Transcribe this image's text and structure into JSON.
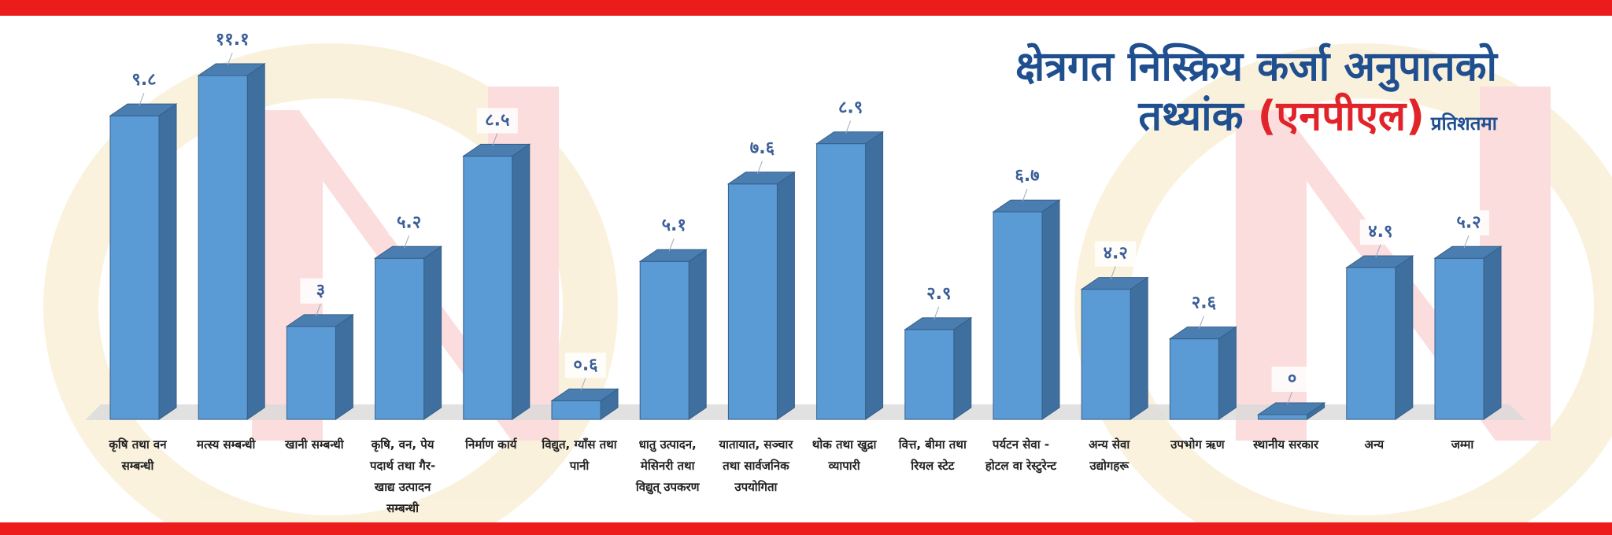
{
  "title": {
    "line1": "क्षेत्रगत निस्क्रिय कर्जा अनुपातको",
    "line2_prefix": "तथ्यांक",
    "line2_highlight": "(एनपीएल)",
    "unit": "प्रतिशतमा"
  },
  "colors": {
    "band": "#ed1c1c",
    "title": "#1f4f8f",
    "highlight": "#e0242a",
    "bar_front": "#5b9bd5",
    "bar_top": "#4a7eb0",
    "bar_side": "#3f6f9e",
    "label_text": "#3a5f99"
  },
  "chart_data": {
    "type": "bar",
    "title": "क्षेत्रगत निस्क्रिय कर्जा अनुपातको तथ्यांक (एनपीएल) प्रतिशतमा",
    "categories": [
      "कृषि तथा वन सम्बन्धी",
      "मत्स्य सम्बन्धी",
      "खानी सम्बन्धी",
      "कृषि, वन, पेय पदार्थ तथा गैर-खाद्य उत्पादन सम्बन्धी",
      "निर्माण कार्य",
      "विद्युत, ग्याँस तथा पानी",
      "धातु उत्पादन, मेसिनरी तथा विद्युत् उपकरण",
      "यातायात, सञ्चार तथा सार्वजनिक उपयोगिता",
      "थोक तथा खुद्रा व्यापारी",
      "वित्त, बीमा तथा रियल स्टेट",
      "पर्यटन सेवा - होटल वा रेस्टुरेन्ट",
      "अन्य सेवा उद्योगहरू",
      "उपभोग ऋण",
      "स्थानीय सरकार",
      "अन्य",
      "जम्मा"
    ],
    "category_lines": [
      [
        "कृषि तथा वन",
        "सम्बन्धी"
      ],
      [
        "मत्स्य सम्बन्धी"
      ],
      [
        "खानी सम्बन्धी"
      ],
      [
        "कृषि, वन, पेय",
        "पदार्थ तथा गैर-",
        "खाद्य उत्पादन",
        "सम्बन्धी"
      ],
      [
        "निर्माण कार्य"
      ],
      [
        "विद्युत, ग्याँस तथा",
        "पानी"
      ],
      [
        "धातु उत्पादन,",
        "मेसिनरी तथा",
        "विद्युत् उपकरण"
      ],
      [
        "यातायात, सञ्चार",
        "तथा सार्वजनिक",
        "उपयोगिता"
      ],
      [
        "थोक तथा खुद्रा",
        "व्यापारी"
      ],
      [
        "वित्त, बीमा तथा",
        "रियल स्टेट"
      ],
      [
        "पर्यटन सेवा -",
        "होटल वा रेस्टुरेन्ट"
      ],
      [
        "अन्य सेवा",
        "उद्योगहरू"
      ],
      [
        "उपभोग ऋण"
      ],
      [
        "स्थानीय सरकार"
      ],
      [
        "अन्य"
      ],
      [
        "जम्मा"
      ]
    ],
    "values": [
      9.8,
      11.1,
      3,
      5.2,
      8.5,
      0.6,
      5.1,
      7.6,
      8.9,
      2.9,
      6.7,
      4.2,
      2.6,
      0,
      4.9,
      5.2
    ],
    "value_labels": [
      "९.८",
      "११.१",
      "३",
      "५.२",
      "८.५",
      "०.६",
      "५.१",
      "७.६",
      "८.९",
      "२.९",
      "६.७",
      "४.२",
      "२.६",
      "०",
      "४.९",
      "५.२"
    ],
    "ylim": [
      0,
      11.1
    ],
    "grid": false,
    "legend": "none"
  }
}
